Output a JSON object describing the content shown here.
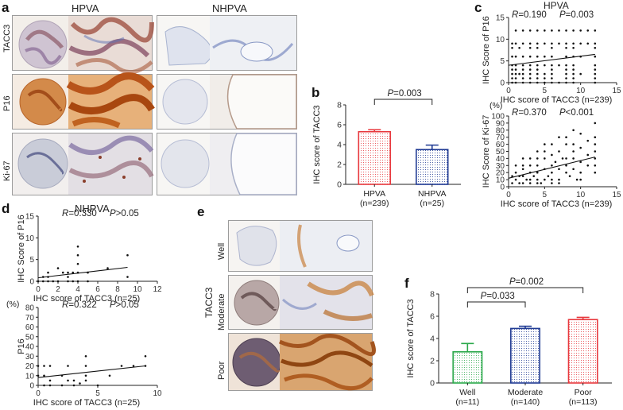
{
  "figure": {
    "panel_letters": [
      "a",
      "b",
      "c",
      "d",
      "e",
      "f"
    ],
    "panel_a": {
      "column_headers": [
        "HPVA",
        "NHPVA"
      ],
      "row_labels": [
        "TACC3",
        "P16",
        "Ki-67"
      ]
    },
    "panel_e": {
      "group_label": "TACC3",
      "row_labels": [
        "Well",
        "Moderate",
        "Poor"
      ]
    }
  },
  "colors": {
    "red": "#e8383d",
    "navy": "#1f3a93",
    "green": "#2aa84a",
    "brown": "#b8652a",
    "hematoxylin": "#5b6fb3"
  },
  "chart_data": [
    {
      "id": "b",
      "type": "bar",
      "categories": [
        "HPVA\n(n=239)",
        "NHPVA\n(n=25)"
      ],
      "category_lines": [
        [
          "HPVA",
          "(n=239)"
        ],
        [
          "NHPVA",
          "(n=25)"
        ]
      ],
      "values": [
        5.3,
        3.5
      ],
      "errors": [
        0.2,
        0.45
      ],
      "colors": [
        "#e8383d",
        "#1f3a93"
      ],
      "ylabel": "IHC score of TACC3",
      "ylim": [
        0,
        8
      ],
      "yticks": [
        0,
        2,
        4,
        6,
        8
      ],
      "comparisons": [
        {
          "from": 0,
          "to": 1,
          "label": "P=0.003"
        }
      ]
    },
    {
      "id": "c1",
      "type": "scatter",
      "title": "HPVA",
      "stat_r": "R=0.190",
      "stat_p": "P=0.003",
      "xlabel": "IHC score of TACC3 (n=239)",
      "ylabel": "IHC Score of P16",
      "xlim": [
        0,
        15
      ],
      "ylim": [
        0,
        15
      ],
      "xticks": [
        0,
        5,
        10,
        15
      ],
      "yticks": [
        0,
        5,
        10,
        15
      ],
      "fit": {
        "x": [
          0,
          12
        ],
        "y": [
          4.0,
          6.5
        ]
      },
      "points": [
        [
          1,
          12
        ],
        [
          2,
          12
        ],
        [
          3,
          12
        ],
        [
          4,
          12
        ],
        [
          5,
          12
        ],
        [
          6,
          12
        ],
        [
          7,
          12
        ],
        [
          8,
          12
        ],
        [
          9,
          12
        ],
        [
          10,
          12
        ],
        [
          11,
          12
        ],
        [
          12,
          12
        ],
        [
          0.5,
          9
        ],
        [
          1,
          9
        ],
        [
          2,
          9
        ],
        [
          3,
          9
        ],
        [
          4,
          9
        ],
        [
          5,
          9
        ],
        [
          6,
          9
        ],
        [
          7,
          9
        ],
        [
          8,
          9
        ],
        [
          9,
          9
        ],
        [
          10,
          9
        ],
        [
          11,
          9
        ],
        [
          12,
          9
        ],
        [
          0.5,
          8
        ],
        [
          1.5,
          8
        ],
        [
          3,
          8
        ],
        [
          4,
          8
        ],
        [
          6,
          8
        ],
        [
          8,
          8
        ],
        [
          9,
          8
        ],
        [
          12,
          8
        ],
        [
          0.5,
          6
        ],
        [
          1,
          6
        ],
        [
          2,
          6
        ],
        [
          3,
          6
        ],
        [
          4,
          6
        ],
        [
          5,
          6
        ],
        [
          6,
          6
        ],
        [
          8,
          6
        ],
        [
          9,
          6
        ],
        [
          10,
          6
        ],
        [
          12,
          6
        ],
        [
          0.5,
          4
        ],
        [
          1,
          4
        ],
        [
          2,
          4
        ],
        [
          3,
          4
        ],
        [
          4,
          4
        ],
        [
          5,
          4
        ],
        [
          6,
          4
        ],
        [
          7,
          4
        ],
        [
          8,
          4
        ],
        [
          9,
          4
        ],
        [
          12,
          4
        ],
        [
          0.5,
          3
        ],
        [
          1,
          3
        ],
        [
          2,
          3
        ],
        [
          3,
          3
        ],
        [
          4,
          3
        ],
        [
          6,
          3
        ],
        [
          8,
          3
        ],
        [
          9,
          3
        ],
        [
          12,
          3
        ],
        [
          0.5,
          2
        ],
        [
          1,
          2
        ],
        [
          1.5,
          2
        ],
        [
          2,
          2
        ],
        [
          3,
          2
        ],
        [
          4,
          2
        ],
        [
          5,
          2
        ],
        [
          6,
          2
        ],
        [
          8,
          2
        ],
        [
          9,
          2
        ],
        [
          10,
          2
        ],
        [
          12,
          2
        ],
        [
          0.5,
          1
        ],
        [
          1,
          1
        ],
        [
          2,
          1
        ],
        [
          3,
          1
        ],
        [
          4,
          1
        ],
        [
          5,
          1
        ],
        [
          6,
          1
        ],
        [
          8,
          1
        ],
        [
          9,
          1
        ],
        [
          12,
          1
        ],
        [
          0.5,
          0
        ],
        [
          1,
          0
        ],
        [
          2,
          0
        ],
        [
          3,
          0
        ],
        [
          4,
          0
        ],
        [
          5,
          0
        ],
        [
          6,
          0
        ],
        [
          7,
          0
        ],
        [
          8,
          0
        ],
        [
          9,
          0
        ],
        [
          12,
          0
        ]
      ]
    },
    {
      "id": "c2",
      "type": "scatter",
      "stat_r": "R=0.370",
      "stat_p": "P<0.001",
      "unit_label": "(%)",
      "xlabel": "IHC score of TACC3 (n=239)",
      "ylabel": "IHC Score of Ki-67",
      "xlim": [
        0,
        15
      ],
      "ylim": [
        0,
        100
      ],
      "xticks": [
        0,
        5,
        10,
        15
      ],
      "yticks": [
        0,
        10,
        20,
        30,
        40,
        50,
        60,
        70,
        80,
        90,
        100
      ],
      "fit": {
        "x": [
          0,
          12
        ],
        "y": [
          12,
          42
        ]
      },
      "points": [
        [
          0.5,
          5
        ],
        [
          1,
          10
        ],
        [
          1,
          20
        ],
        [
          1.5,
          15
        ],
        [
          2,
          5
        ],
        [
          2,
          25
        ],
        [
          2,
          30
        ],
        [
          2.5,
          10
        ],
        [
          3,
          20
        ],
        [
          3,
          40
        ],
        [
          3,
          5
        ],
        [
          3.5,
          15
        ],
        [
          4,
          10
        ],
        [
          4,
          30
        ],
        [
          4,
          50
        ],
        [
          4,
          20
        ],
        [
          4.5,
          5
        ],
        [
          5,
          25
        ],
        [
          5,
          40
        ],
        [
          5,
          60
        ],
        [
          5,
          10
        ],
        [
          5.5,
          15
        ],
        [
          6,
          30
        ],
        [
          6,
          45
        ],
        [
          6,
          20
        ],
        [
          6,
          5
        ],
        [
          6.5,
          35
        ],
        [
          7,
          10
        ],
        [
          7,
          50
        ],
        [
          7,
          25
        ],
        [
          7.5,
          40
        ],
        [
          8,
          20
        ],
        [
          8,
          60
        ],
        [
          8,
          30
        ],
        [
          8,
          70
        ],
        [
          8.5,
          15
        ],
        [
          9,
          40
        ],
        [
          9,
          80
        ],
        [
          9,
          25
        ],
        [
          9,
          50
        ],
        [
          9.5,
          10
        ],
        [
          10,
          35
        ],
        [
          10,
          55
        ],
        [
          10,
          20
        ],
        [
          11,
          45
        ],
        [
          11,
          30
        ],
        [
          12,
          50
        ],
        [
          12,
          70
        ],
        [
          12,
          90
        ],
        [
          12,
          30
        ],
        [
          12,
          20
        ],
        [
          0.5,
          15
        ],
        [
          1,
          30
        ],
        [
          1.5,
          5
        ],
        [
          2,
          15
        ],
        [
          3,
          30
        ],
        [
          4,
          40
        ],
        [
          5,
          50
        ],
        [
          6,
          60
        ],
        [
          7,
          70
        ],
        [
          8,
          40
        ],
        [
          9,
          60
        ],
        [
          10,
          75
        ],
        [
          11,
          65
        ],
        [
          12,
          60
        ],
        [
          12,
          40
        ],
        [
          6,
          10
        ],
        [
          7,
          5
        ],
        [
          3,
          10
        ],
        [
          2,
          40
        ],
        [
          4,
          5
        ],
        [
          10,
          10
        ]
      ]
    },
    {
      "id": "d1",
      "type": "scatter",
      "title": "NHPVA",
      "stat_r": "R=0.330",
      "stat_p": "P>0.05",
      "xlabel": "IHC score of TACC3 (n=25)",
      "ylabel": "IHC Score of P16",
      "xlim": [
        0,
        12
      ],
      "ylim": [
        0,
        15
      ],
      "xticks": [
        0,
        2,
        4,
        6,
        8,
        10,
        12
      ],
      "yticks": [
        0,
        5,
        10,
        15
      ],
      "fit": {
        "x": [
          0,
          9
        ],
        "y": [
          0.8,
          3.2
        ]
      },
      "points": [
        [
          0,
          0
        ],
        [
          0.5,
          0
        ],
        [
          1,
          0
        ],
        [
          1.5,
          0
        ],
        [
          2,
          0
        ],
        [
          3,
          0
        ],
        [
          3.5,
          0
        ],
        [
          4,
          0
        ],
        [
          0.5,
          1
        ],
        [
          1,
          1
        ],
        [
          2,
          3
        ],
        [
          2.5,
          2
        ],
        [
          3,
          2
        ],
        [
          3.5,
          2
        ],
        [
          4,
          4
        ],
        [
          4,
          6
        ],
        [
          4,
          8
        ],
        [
          4,
          2
        ],
        [
          5,
          2
        ],
        [
          7,
          3
        ],
        [
          9,
          6
        ],
        [
          9,
          1
        ],
        [
          3,
          1
        ],
        [
          1,
          2
        ],
        [
          5,
          0
        ]
      ]
    },
    {
      "id": "d2",
      "type": "scatter",
      "stat_r": "R=0.322",
      "stat_p": "P>0.05",
      "unit_label": "(%)",
      "xlabel": "IHC score of TACC3 (n=25)",
      "ylabel": "P16",
      "xlim": [
        0,
        10
      ],
      "ylim": [
        0,
        80
      ],
      "xticks": [
        0,
        5,
        10
      ],
      "yticks": [
        0,
        10,
        20,
        30,
        40,
        50,
        60,
        70,
        80
      ],
      "fit": {
        "x": [
          0,
          9
        ],
        "y": [
          8,
          20
        ]
      },
      "points": [
        [
          0,
          20
        ],
        [
          0.5,
          20
        ],
        [
          1,
          20
        ],
        [
          0,
          10
        ],
        [
          0.5,
          10
        ],
        [
          1,
          5
        ],
        [
          2,
          0
        ],
        [
          2,
          10
        ],
        [
          2.5,
          20
        ],
        [
          3,
          5
        ],
        [
          3,
          0
        ],
        [
          3.5,
          2
        ],
        [
          4,
          30
        ],
        [
          4,
          20
        ],
        [
          4,
          10
        ],
        [
          4,
          5
        ],
        [
          5,
          0
        ],
        [
          6,
          10
        ],
        [
          7,
          20
        ],
        [
          8,
          20
        ],
        [
          9,
          30
        ],
        [
          9,
          20
        ],
        [
          1,
          0
        ],
        [
          2.5,
          5
        ],
        [
          0.5,
          0
        ]
      ]
    },
    {
      "id": "f",
      "type": "bar",
      "categories": [
        "Well\n(n=11)",
        "Moderate\n(n=140)",
        "Poor\n(n=113)"
      ],
      "category_lines": [
        [
          "Well",
          "(n=11)"
        ],
        [
          "Moderate",
          "(n=140)"
        ],
        [
          "Poor",
          "(n=113)"
        ]
      ],
      "values": [
        2.8,
        4.9,
        5.7
      ],
      "errors": [
        0.75,
        0.2,
        0.2
      ],
      "colors": [
        "#2aa84a",
        "#1f3a93",
        "#e8383d"
      ],
      "ylabel": "IHC score of TACC3",
      "ylim": [
        0,
        8
      ],
      "yticks": [
        0,
        2,
        4,
        6,
        8
      ],
      "comparisons": [
        {
          "from": 0,
          "to": 1,
          "label": "P=0.033"
        },
        {
          "from": 0,
          "to": 2,
          "label": "P=0.002"
        }
      ]
    }
  ]
}
